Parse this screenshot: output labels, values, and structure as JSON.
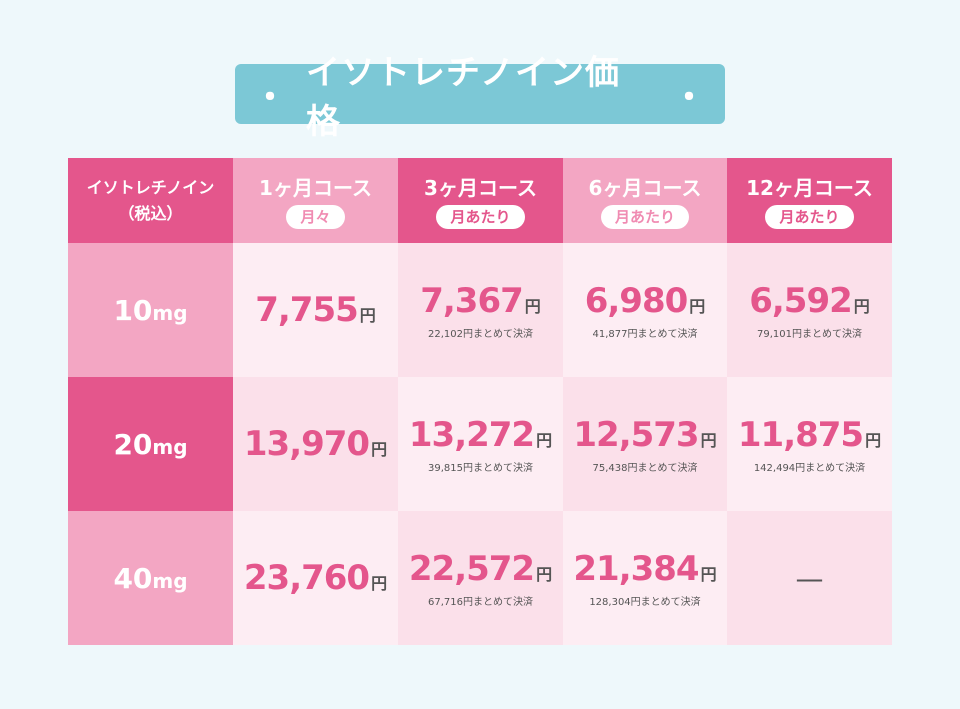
{
  "title": {
    "dot_left": "・",
    "text": "イソトレチノイン価格",
    "dot_right": "・"
  },
  "header": {
    "corner_line1": "イソトレチノイン",
    "corner_line2": "（税込）",
    "courses": [
      {
        "name": "1ヶ月コース",
        "pill": "月々"
      },
      {
        "name": "3ヶ月コース",
        "pill": "月あたり"
      },
      {
        "name": "6ヶ月コース",
        "pill": "月あたり"
      },
      {
        "name": "12ヶ月コース",
        "pill": "月あたり"
      }
    ]
  },
  "yen": "円",
  "rows": [
    {
      "dose": "10",
      "unit": "mg",
      "cells": [
        {
          "price": "7,755",
          "total": ""
        },
        {
          "price": "7,367",
          "total": "22,102円まとめて決済"
        },
        {
          "price": "6,980",
          "total": "41,877円まとめて決済"
        },
        {
          "price": "6,592",
          "total": "79,101円まとめて決済"
        }
      ]
    },
    {
      "dose": "20",
      "unit": "mg",
      "cells": [
        {
          "price": "13,970",
          "total": ""
        },
        {
          "price": "13,272",
          "total": "39,815円まとめて決済"
        },
        {
          "price": "12,573",
          "total": "75,438円まとめて決済"
        },
        {
          "price": "11,875",
          "total": "142,494円まとめて決済"
        }
      ]
    },
    {
      "dose": "40",
      "unit": "mg",
      "cells": [
        {
          "price": "23,760",
          "total": ""
        },
        {
          "price": "22,572",
          "total": "67,716円まとめて決済"
        },
        {
          "price": "21,384",
          "total": "128,304円まとめて決済"
        },
        {
          "dash": "—"
        }
      ]
    }
  ]
}
